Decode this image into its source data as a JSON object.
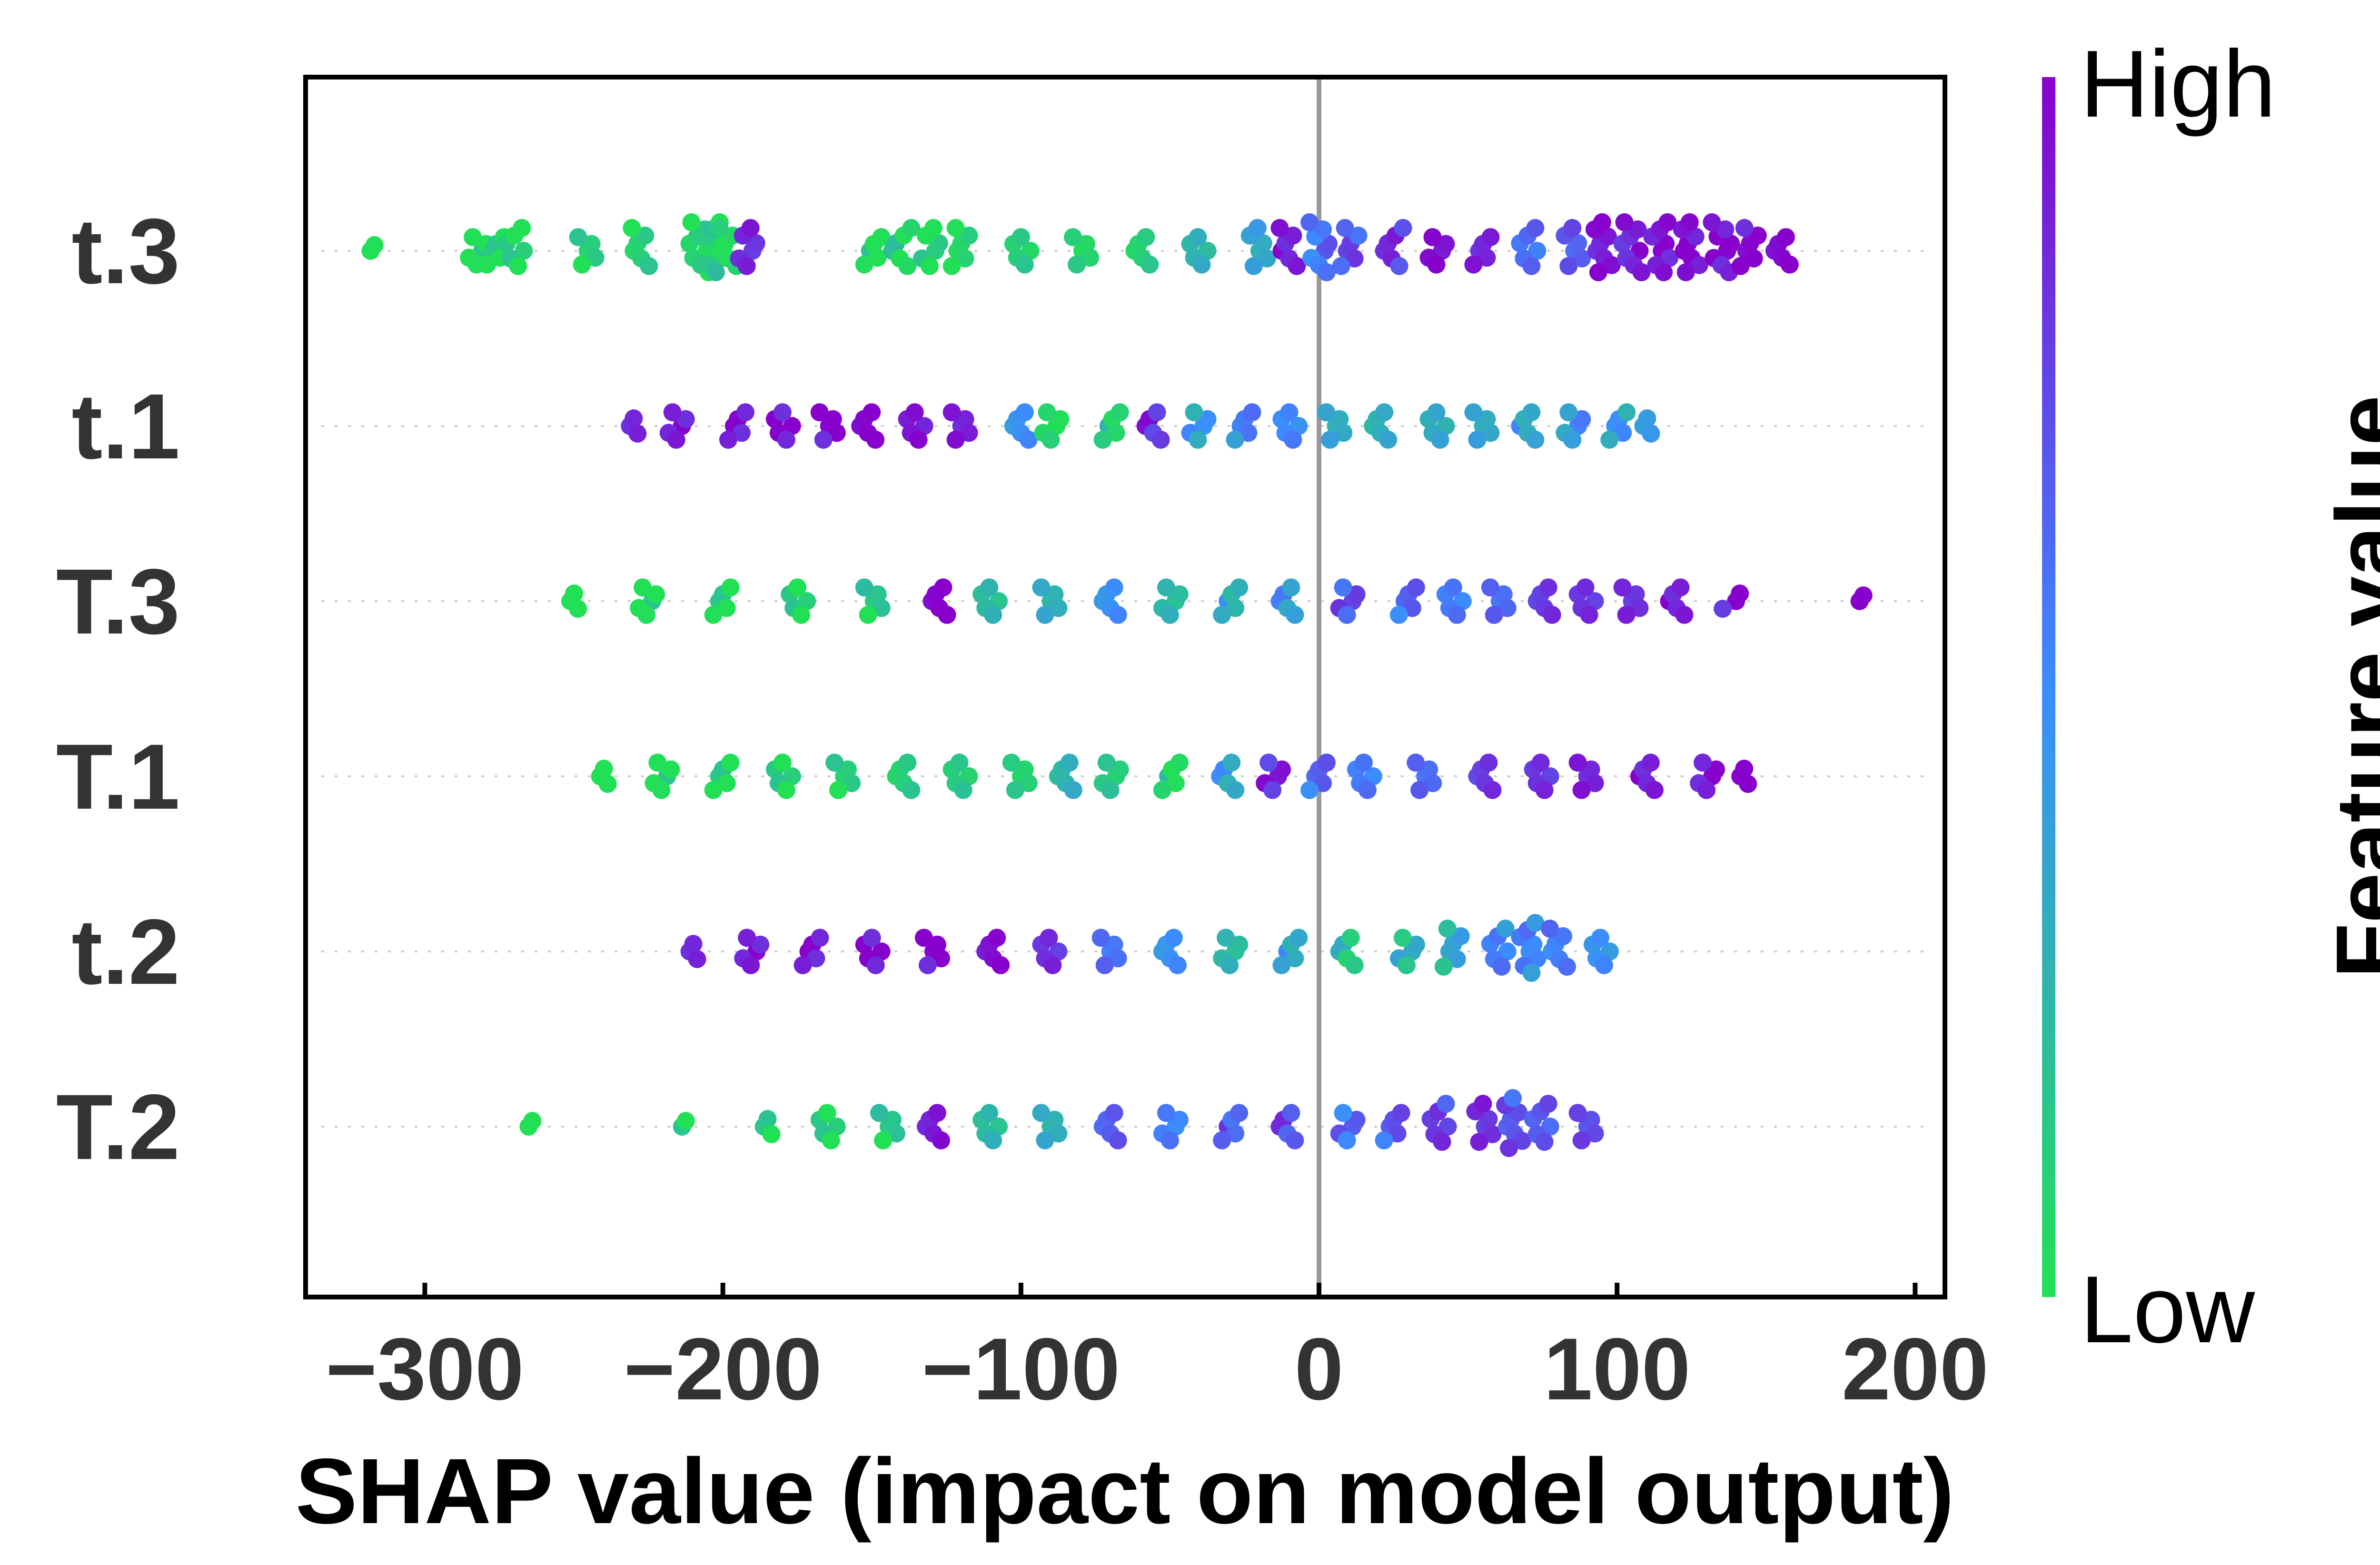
{
  "chart_data": {
    "type": "scatter",
    "subtype": "shap-beeswarm",
    "xlabel": "SHAP value (impact on model output)",
    "xlim": [
      -340,
      210
    ],
    "xticks": [
      -300,
      -200,
      -100,
      0,
      100,
      200
    ],
    "xtick_labels": [
      "−300",
      "−200",
      "−100",
      "0",
      "100",
      "200"
    ],
    "zero_line": 0,
    "grid": false,
    "features": [
      "t.3",
      "t.1",
      "T.3",
      "T.1",
      "t.2",
      "T.2"
    ],
    "colorbar": {
      "label": "Feature value",
      "high_label": "High",
      "low_label": "Low",
      "colors": [
        "#22e055",
        "#3b8cff",
        "#8800cc"
      ],
      "placement": "right"
    },
    "series": [
      {
        "feature": "t.3",
        "points": [
          [
            -315,
            0.05
          ],
          [
            -282,
            0.05
          ],
          [
            -276,
            0.05
          ],
          [
            -270,
            0.05
          ],
          [
            -246,
            0.05
          ],
          [
            -228,
            0.05
          ],
          [
            -208,
            0.05
          ],
          [
            -203,
            0.1
          ],
          [
            -198,
            0.05
          ],
          [
            -192,
            0.9
          ],
          [
            -150,
            0.05
          ],
          [
            -140,
            0.1
          ],
          [
            -130,
            0.05
          ],
          [
            -120,
            0.0
          ],
          [
            -100,
            0.05
          ],
          [
            -80,
            0.05
          ],
          [
            -60,
            0.1
          ],
          [
            -40,
            0.3
          ],
          [
            -20,
            0.4
          ],
          [
            -10,
            0.95
          ],
          [
            0,
            0.6
          ],
          [
            10,
            0.7
          ],
          [
            25,
            0.8
          ],
          [
            40,
            0.9
          ],
          [
            55,
            0.85
          ],
          [
            70,
            0.6
          ],
          [
            85,
            0.7
          ],
          [
            95,
            0.95
          ],
          [
            105,
            0.9
          ],
          [
            115,
            0.95
          ],
          [
            125,
            0.98
          ],
          [
            135,
            0.95
          ],
          [
            144,
            0.95
          ],
          [
            156,
            0.95
          ]
        ]
      },
      {
        "feature": "t.1",
        "points": [
          [
            -228,
            0.95
          ],
          [
            -215,
            0.95
          ],
          [
            -195,
            0.95
          ],
          [
            -180,
            0.95
          ],
          [
            -165,
            0.95
          ],
          [
            -152,
            0.95
          ],
          [
            -135,
            0.9
          ],
          [
            -120,
            0.9
          ],
          [
            -100,
            0.5
          ],
          [
            -90,
            0.1
          ],
          [
            -70,
            0.15
          ],
          [
            -55,
            0.85
          ],
          [
            -40,
            0.4
          ],
          [
            -25,
            0.5
          ],
          [
            -10,
            0.45
          ],
          [
            5,
            0.3
          ],
          [
            20,
            0.3
          ],
          [
            40,
            0.35
          ],
          [
            55,
            0.4
          ],
          [
            70,
            0.4
          ],
          [
            85,
            0.45
          ],
          [
            100,
            0.4
          ],
          [
            112,
            0.35
          ]
        ]
      },
      {
        "feature": "T.3",
        "points": [
          [
            -248,
            0.05
          ],
          [
            -225,
            0.05
          ],
          [
            -200,
            0.05
          ],
          [
            -175,
            0.05
          ],
          [
            -150,
            0.1
          ],
          [
            -128,
            0.95
          ],
          [
            -110,
            0.2
          ],
          [
            -90,
            0.3
          ],
          [
            -70,
            0.5
          ],
          [
            -50,
            0.3
          ],
          [
            -30,
            0.35
          ],
          [
            -10,
            0.45
          ],
          [
            10,
            0.7
          ],
          [
            30,
            0.6
          ],
          [
            45,
            0.5
          ],
          [
            60,
            0.6
          ],
          [
            75,
            0.8
          ],
          [
            90,
            0.85
          ],
          [
            105,
            0.9
          ],
          [
            120,
            0.95
          ],
          [
            138,
            0.9
          ],
          [
            182,
            0.95
          ]
        ]
      },
      {
        "feature": "T.1",
        "points": [
          [
            -238,
            0.05
          ],
          [
            -220,
            0.05
          ],
          [
            -200,
            0.05
          ],
          [
            -180,
            0.05
          ],
          [
            -160,
            0.05
          ],
          [
            -140,
            0.05
          ],
          [
            -120,
            0.1
          ],
          [
            -100,
            0.1
          ],
          [
            -85,
            0.3
          ],
          [
            -70,
            0.2
          ],
          [
            -50,
            0.1
          ],
          [
            -30,
            0.4
          ],
          [
            -15,
            0.85
          ],
          [
            0,
            0.6
          ],
          [
            15,
            0.5
          ],
          [
            35,
            0.6
          ],
          [
            55,
            0.8
          ],
          [
            75,
            0.85
          ],
          [
            90,
            0.95
          ],
          [
            110,
            0.95
          ],
          [
            130,
            0.95
          ],
          [
            142,
            0.95
          ]
        ]
      },
      {
        "feature": "t.2",
        "points": [
          [
            -208,
            0.95
          ],
          [
            -190,
            0.95
          ],
          [
            -170,
            0.95
          ],
          [
            -150,
            0.95
          ],
          [
            -130,
            0.95
          ],
          [
            -110,
            0.9
          ],
          [
            -90,
            0.8
          ],
          [
            -70,
            0.6
          ],
          [
            -50,
            0.5
          ],
          [
            -30,
            0.3
          ],
          [
            -10,
            0.4
          ],
          [
            10,
            0.2
          ],
          [
            30,
            0.25
          ],
          [
            45,
            0.3
          ],
          [
            60,
            0.5
          ],
          [
            70,
            0.5
          ],
          [
            80,
            0.55
          ],
          [
            95,
            0.5
          ]
        ]
      },
      {
        "feature": "T.2",
        "points": [
          [
            -262,
            0.05
          ],
          [
            -215,
            0.05
          ],
          [
            -185,
            0.05
          ],
          [
            -165,
            0.05
          ],
          [
            -145,
            0.1
          ],
          [
            -130,
            0.85
          ],
          [
            -110,
            0.2
          ],
          [
            -90,
            0.3
          ],
          [
            -70,
            0.7
          ],
          [
            -50,
            0.6
          ],
          [
            -30,
            0.7
          ],
          [
            -10,
            0.75
          ],
          [
            10,
            0.6
          ],
          [
            25,
            0.65
          ],
          [
            40,
            0.75
          ],
          [
            55,
            0.8
          ],
          [
            65,
            0.7
          ],
          [
            75,
            0.7
          ],
          [
            90,
            0.8
          ]
        ]
      }
    ]
  }
}
